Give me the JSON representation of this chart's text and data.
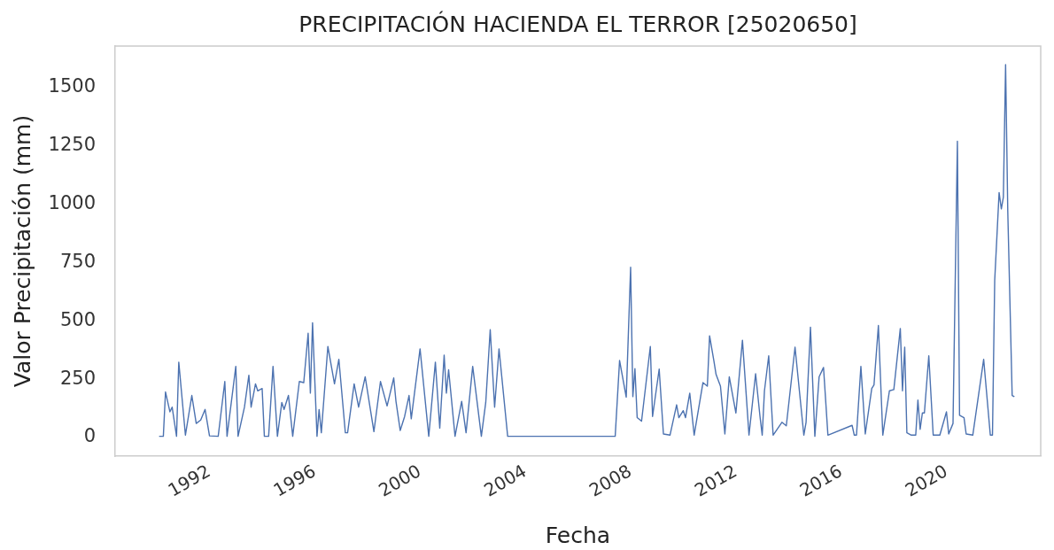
{
  "chart_data": {
    "type": "line",
    "title": "PRECIPITACIÓN HACIENDA EL TERROR [25020650]",
    "xlabel": "Fecha",
    "ylabel": "Valor Precipitación (mm)",
    "color": "#4c72b0",
    "x": [
      "1990-02",
      "1990-04",
      "1990-05",
      "1990-07",
      "1990-08",
      "1990-10",
      "1990-11",
      "1991-02",
      "1991-05",
      "1991-07",
      "1991-09",
      "1991-11",
      "1992-01",
      "1992-05",
      "1992-08",
      "1992-09",
      "1993-01",
      "1993-02",
      "1993-05",
      "1993-07",
      "1993-08",
      "1993-10",
      "1993-11",
      "1994-01",
      "1994-02",
      "1994-04",
      "1994-06",
      "1994-08",
      "1994-10",
      "1994-11",
      "1995-01",
      "1995-03",
      "1995-06",
      "1995-08",
      "1995-10",
      "1995-11",
      "1995-12",
      "1996-02",
      "1996-03",
      "1996-04",
      "1996-07",
      "1996-10",
      "1996-12",
      "1997-03",
      "1997-04",
      "1997-07",
      "1997-09",
      "1997-12",
      "1998-04",
      "1998-07",
      "1998-10",
      "1999-01",
      "1999-02",
      "1999-04",
      "1999-06",
      "1999-08",
      "1999-09",
      "2000-01",
      "2000-05",
      "2000-08",
      "2000-10",
      "2000-12",
      "2001-01",
      "2001-02",
      "2001-05",
      "2001-08",
      "2001-10",
      "2002-01",
      "2002-05",
      "2002-07",
      "2002-09",
      "2002-11",
      "2003-01",
      "2003-05",
      "2007-06",
      "2007-08",
      "2007-11",
      "2008-01",
      "2008-02",
      "2008-03",
      "2008-04",
      "2008-06",
      "2008-10",
      "2008-11",
      "2009-02",
      "2009-04",
      "2009-07",
      "2009-10",
      "2009-11",
      "2010-01",
      "2010-02",
      "2010-04",
      "2010-06",
      "2010-10",
      "2010-12",
      "2011-01",
      "2011-03",
      "2011-04",
      "2011-06",
      "2011-08",
      "2011-10",
      "2012-01",
      "2012-04",
      "2012-07",
      "2012-10",
      "2012-12",
      "2013-01",
      "2013-02",
      "2013-04",
      "2013-06",
      "2013-10",
      "2013-12",
      "2014-04",
      "2014-08",
      "2014-09",
      "2014-11",
      "2015-01",
      "2015-03",
      "2015-05",
      "2015-07",
      "2016-06",
      "2016-07",
      "2016-08",
      "2016-10",
      "2016-12",
      "2017-03",
      "2017-04",
      "2017-06",
      "2017-08",
      "2017-11",
      "2018-01",
      "2018-04",
      "2018-05",
      "2018-06",
      "2018-07",
      "2018-09",
      "2018-11",
      "2018-12",
      "2019-01",
      "2019-02",
      "2019-03",
      "2019-05",
      "2019-07",
      "2019-10",
      "2020-01",
      "2020-02",
      "2020-04",
      "2020-06",
      "2020-07",
      "2020-09",
      "2020-10",
      "2021-01",
      "2021-06",
      "2021-09",
      "2021-10",
      "2021-11",
      "2022-01",
      "2022-02",
      "2022-03",
      "2022-04",
      "2022-05",
      "2022-07",
      "2022-08"
    ],
    "values": [
      5,
      5,
      195,
      110,
      130,
      5,
      323,
      10,
      180,
      60,
      75,
      120,
      7,
      5,
      240,
      5,
      305,
      5,
      130,
      267,
      130,
      230,
      200,
      210,
      5,
      5,
      305,
      5,
      150,
      120,
      180,
      5,
      240,
      235,
      447,
      190,
      492,
      5,
      120,
      20,
      390,
      230,
      335,
      20,
      20,
      230,
      130,
      260,
      25,
      240,
      135,
      255,
      155,
      30,
      90,
      180,
      80,
      380,
      5,
      323,
      40,
      353,
      190,
      290,
      5,
      155,
      20,
      305,
      5,
      150,
      462,
      130,
      380,
      5,
      5,
      330,
      173,
      730,
      175,
      295,
      85,
      70,
      390,
      90,
      293,
      15,
      10,
      140,
      85,
      115,
      85,
      190,
      10,
      235,
      220,
      436,
      330,
      270,
      220,
      15,
      260,
      105,
      417,
      10,
      273,
      90,
      10,
      200,
      350,
      10,
      65,
      50,
      387,
      10,
      65,
      473,
      5,
      260,
      300,
      10,
      52,
      10,
      10,
      305,
      15,
      210,
      225,
      480,
      10,
      200,
      205,
      467,
      200,
      387,
      20,
      10,
      10,
      160,
      35,
      105,
      105,
      350,
      10,
      10,
      110,
      15,
      60,
      1270,
      95,
      85,
      15,
      10,
      335,
      10,
      10,
      673,
      1050,
      980,
      1030,
      1598,
      973,
      180,
      175
    ],
    "xlim": [
      "1988-06",
      "2023-08"
    ],
    "ylim": [
      -80,
      1678
    ],
    "xticks": [
      "1992",
      "1996",
      "2000",
      "2004",
      "2008",
      "2012",
      "2016",
      "2020"
    ],
    "yticks": [
      0,
      250,
      500,
      750,
      1000,
      1250,
      1500
    ]
  }
}
